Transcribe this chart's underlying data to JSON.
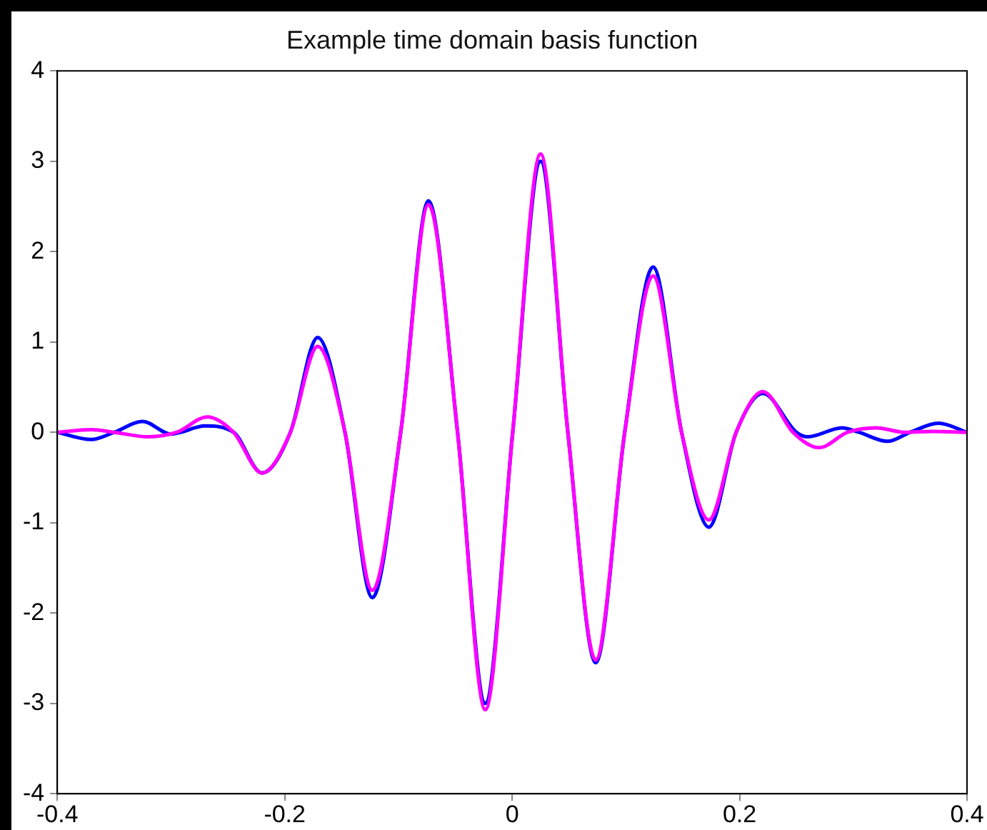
{
  "chart_data": {
    "type": "line",
    "title": "Example time domain basis function",
    "xlim": [
      -0.4,
      0.4
    ],
    "xticks": [
      -0.4,
      -0.2,
      0,
      0.2,
      0.4
    ],
    "ylim": [
      -4,
      4
    ],
    "yticks": [
      -4,
      -3,
      -2,
      -1,
      0,
      1,
      2,
      3,
      4
    ],
    "grid": false,
    "legend": false,
    "marker": "none",
    "line_style": "solid",
    "series": [
      {
        "color": "#ff00ff",
        "x": [
          -0.4,
          -0.37,
          -0.35,
          -0.32,
          -0.295,
          -0.268,
          -0.245,
          -0.22,
          -0.195,
          -0.171,
          -0.147,
          -0.123,
          -0.098,
          -0.0736,
          -0.048,
          -0.0236,
          0.0005,
          0.025,
          0.049,
          0.0735,
          0.099,
          0.124,
          0.149,
          0.173,
          0.197,
          0.2205,
          0.247,
          0.27,
          0.295,
          0.32,
          0.345,
          0.37,
          0.4
        ],
        "values": [
          0,
          0.03,
          0,
          -0.05,
          0,
          0.17,
          0,
          -0.45,
          0,
          0.95,
          0,
          -1.75,
          0,
          2.52,
          0,
          -3.07,
          0,
          3.08,
          0,
          -2.52,
          0,
          1.73,
          0,
          -0.97,
          0,
          0.45,
          0,
          -0.17,
          0,
          0.05,
          0,
          0.01,
          0
        ]
      },
      {
        "color": "#0000ff",
        "x": [
          -0.4,
          -0.37,
          -0.35,
          -0.325,
          -0.3,
          -0.27,
          -0.245,
          -0.22,
          -0.195,
          -0.171,
          -0.147,
          -0.123,
          -0.098,
          -0.0736,
          -0.048,
          -0.0236,
          0.0005,
          0.025,
          0.049,
          0.0735,
          0.099,
          0.124,
          0.149,
          0.173,
          0.197,
          0.2205,
          0.25,
          0.26,
          0.29,
          0.305,
          0.33,
          0.35,
          0.375,
          0.4
        ],
        "values": [
          0,
          -0.08,
          0,
          0.12,
          -0.02,
          0.07,
          0,
          -0.45,
          0,
          1.05,
          0,
          -1.83,
          0,
          2.56,
          0,
          -3,
          0,
          3,
          0,
          -2.55,
          0,
          1.83,
          0,
          -1.05,
          0,
          0.43,
          0,
          -0.05,
          0.05,
          0,
          -0.1,
          0,
          0.1,
          0
        ]
      }
    ]
  }
}
